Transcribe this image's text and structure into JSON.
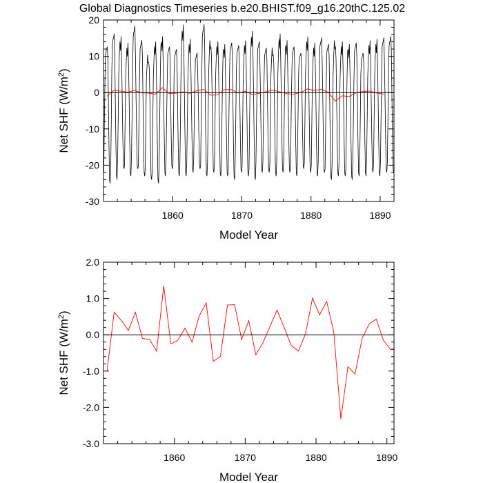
{
  "title": "Global Diagnostics Timeseries b.e20.BHIST.f09_g16.20thC.125.02",
  "colors": {
    "monthly": "#000000",
    "annual": "#ff0000",
    "axes": "#000000"
  },
  "chart_data": [
    {
      "type": "line",
      "xlabel": "Model Year",
      "ylabel_main": "Net SHF (W/m",
      "ylabel_sup": "2",
      "ylabel_end": ")",
      "xlim": [
        1850,
        1892
      ],
      "ylim": [
        -30,
        20
      ],
      "xticks": [
        1860,
        1870,
        1880,
        1890
      ],
      "xtick_labels": [
        "1860",
        "1870",
        "1880",
        "1890"
      ],
      "yticks": [
        -30,
        -20,
        -10,
        0,
        10,
        20
      ],
      "ytick_labels": [
        "-30",
        "-20",
        "-10",
        "0",
        "10",
        "20"
      ],
      "reference_line": 0,
      "series": [
        {
          "style": "monthly",
          "start_year": 1850,
          "points_per_year": 12,
          "annual_shape": [
            -21,
            -8,
            4,
            10,
            12,
            11,
            13,
            8,
            -2,
            -14,
            -23,
            -24
          ],
          "peaks": [
            12,
            16,
            13,
            12,
            17,
            14,
            9,
            12,
            14,
            12,
            12,
            16,
            13,
            10,
            18,
            13,
            12,
            12,
            13,
            13,
            12,
            15,
            13,
            12,
            11,
            14,
            13,
            12,
            11,
            13,
            12,
            14,
            13,
            13,
            12,
            12,
            13,
            11,
            12,
            13,
            14,
            15
          ],
          "troughs": [
            -25,
            -24,
            -21,
            -23,
            -21,
            -23,
            -24,
            -25,
            -23,
            -21,
            -23,
            -23,
            -22,
            -21,
            -23,
            -22,
            -23,
            -23,
            -24,
            -22,
            -23,
            -24,
            -22,
            -22,
            -23,
            -22,
            -22,
            -23,
            -21,
            -22,
            -23,
            -22,
            -24,
            -23,
            -23,
            -24,
            -23,
            -23,
            -22,
            -23,
            -22,
            -22
          ]
        },
        {
          "style": "annual",
          "x": [
            1850,
            1851,
            1852,
            1853,
            1854,
            1855,
            1856,
            1857,
            1858,
            1859,
            1860,
            1861,
            1862,
            1863,
            1864,
            1865,
            1866,
            1867,
            1868,
            1869,
            1870,
            1871,
            1872,
            1873,
            1874,
            1875,
            1876,
            1877,
            1878,
            1879,
            1880,
            1881,
            1882,
            1883,
            1884,
            1885,
            1886,
            1887,
            1888,
            1889,
            1890
          ],
          "values": [
            -1.0,
            0.62,
            0.4,
            0.12,
            0.62,
            -0.1,
            -0.13,
            -0.45,
            1.35,
            -0.25,
            -0.15,
            0.18,
            -0.2,
            0.52,
            0.88,
            -0.73,
            -0.6,
            0.82,
            0.83,
            -0.13,
            0.39,
            -0.55,
            -0.22,
            0.23,
            0.68,
            0.2,
            -0.3,
            -0.45,
            0.02,
            1.01,
            0.55,
            0.92,
            0.08,
            -2.32,
            -0.88,
            -1.08,
            -0.1,
            0.3,
            0.43,
            -0.15,
            -0.4
          ]
        }
      ]
    },
    {
      "type": "line",
      "xlabel": "Model Year",
      "ylabel_main": "Net SHF (W/m",
      "ylabel_sup": "2",
      "ylabel_end": ")",
      "xlim": [
        1850,
        1891
      ],
      "ylim": [
        -3,
        2
      ],
      "xticks": [
        1860,
        1870,
        1880,
        1890
      ],
      "xtick_labels": [
        "1860",
        "1870",
        "1880",
        "1890"
      ],
      "yticks": [
        -3,
        -2,
        -1,
        0,
        1,
        2
      ],
      "ytick_labels": [
        "-3.0",
        "-2.0",
        "-1.0",
        "0.0",
        "1.0",
        "2.0"
      ],
      "reference_line": 0,
      "series": [
        {
          "style": "annual",
          "x": [
            1850,
            1851,
            1852,
            1853,
            1854,
            1855,
            1856,
            1857,
            1858,
            1859,
            1860,
            1861,
            1862,
            1863,
            1864,
            1865,
            1866,
            1867,
            1868,
            1869,
            1870,
            1871,
            1872,
            1873,
            1874,
            1875,
            1876,
            1877,
            1878,
            1879,
            1880,
            1881,
            1882,
            1883,
            1884,
            1885,
            1886,
            1887,
            1888,
            1889,
            1890,
            1891
          ],
          "values": [
            -1.0,
            0.62,
            0.4,
            0.12,
            0.62,
            -0.1,
            -0.13,
            -0.45,
            1.35,
            -0.25,
            -0.15,
            0.18,
            -0.2,
            0.52,
            0.88,
            -0.73,
            -0.6,
            0.82,
            0.83,
            -0.13,
            0.39,
            -0.55,
            -0.22,
            0.23,
            0.68,
            0.2,
            -0.3,
            -0.45,
            0.02,
            1.01,
            0.55,
            0.92,
            0.08,
            -2.32,
            -0.88,
            -1.08,
            -0.1,
            0.3,
            0.43,
            -0.15,
            -0.4,
            -0.4
          ]
        }
      ]
    }
  ]
}
